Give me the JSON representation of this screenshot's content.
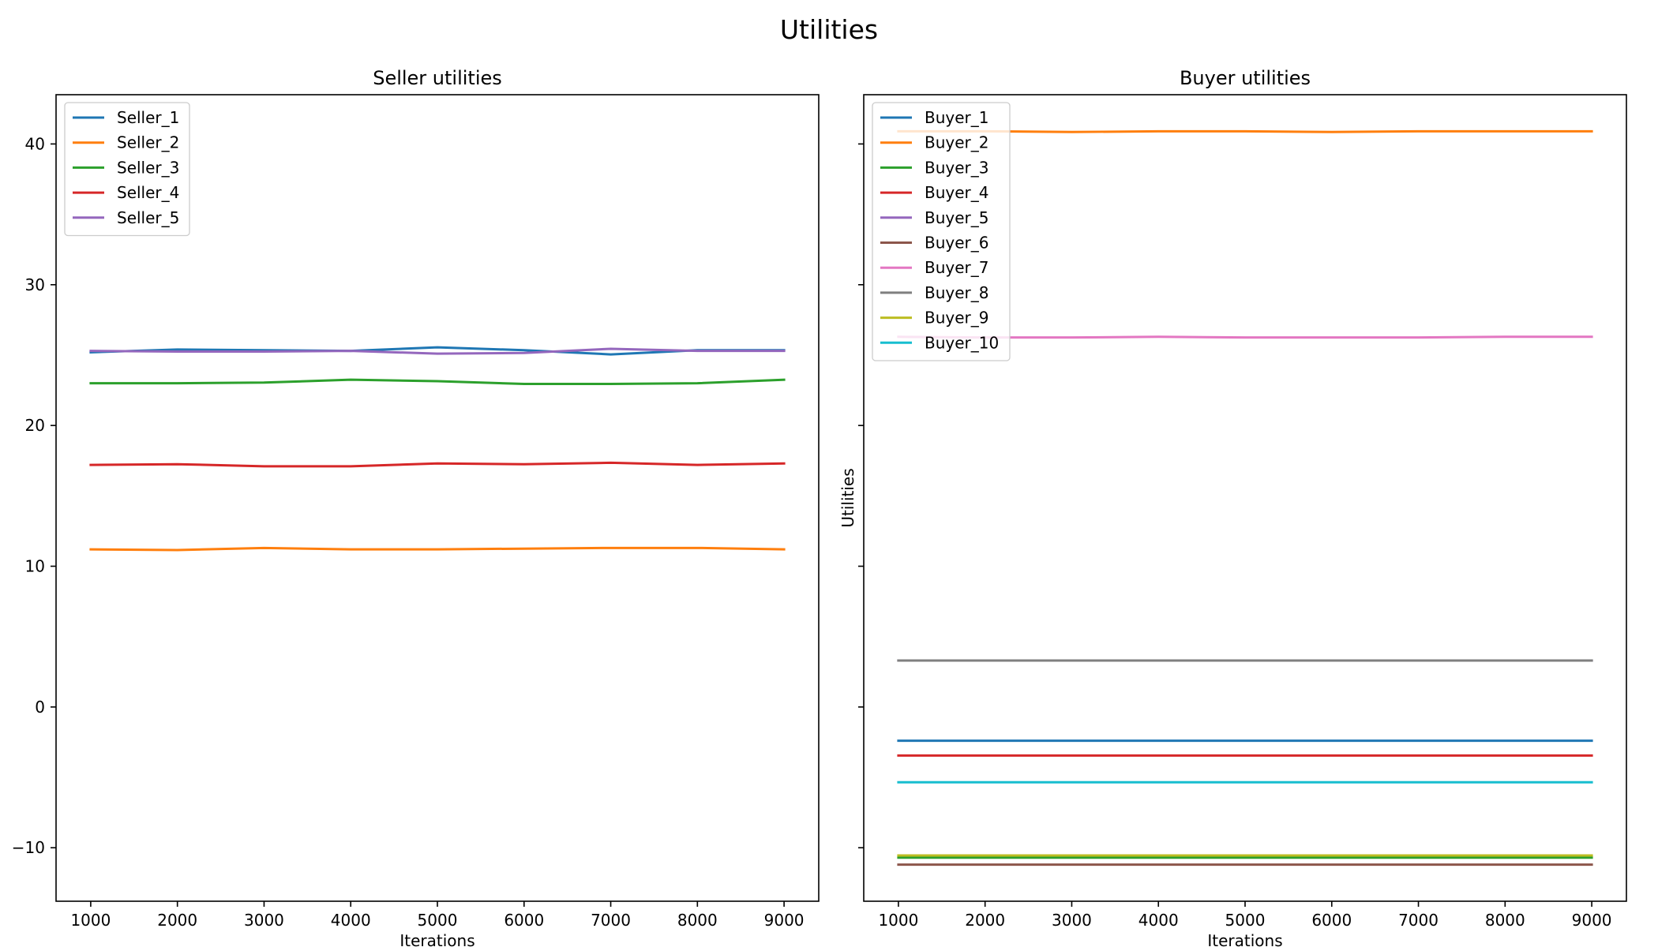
{
  "figure": {
    "title": "Utilities"
  },
  "colors": {
    "C0": "#1f77b4",
    "C1": "#ff7f0e",
    "C2": "#2ca02c",
    "C3": "#d62728",
    "C4": "#9467bd",
    "C5": "#8c564b",
    "C6": "#e377c2",
    "C7": "#7f7f7f",
    "C8": "#bcbd22",
    "C9": "#17becf"
  },
  "chart_data": [
    {
      "type": "line",
      "title": "Seller utilities",
      "xlabel": "Iterations",
      "ylabel": "",
      "x": [
        1000,
        2000,
        3000,
        4000,
        5000,
        6000,
        7000,
        8000,
        9000
      ],
      "xticks": [
        1000,
        2000,
        3000,
        4000,
        5000,
        6000,
        7000,
        8000,
        9000
      ],
      "xlim": [
        600,
        9400
      ],
      "yticks": [
        -10,
        0,
        10,
        20,
        30,
        40
      ],
      "ytick_labels": [
        "−10",
        "0",
        "10",
        "20",
        "30",
        "40"
      ],
      "ylim": [
        -13.8,
        43.5
      ],
      "show_yticklabels": true,
      "grid": false,
      "legend": "top-left",
      "series": [
        {
          "name": "Seller_1",
          "color": "#1f77b4",
          "values": [
            25.2,
            25.4,
            25.35,
            25.3,
            25.55,
            25.35,
            25.05,
            25.35,
            25.35
          ]
        },
        {
          "name": "Seller_2",
          "color": "#ff7f0e",
          "values": [
            11.2,
            11.15,
            11.3,
            11.2,
            11.2,
            11.25,
            11.3,
            11.3,
            11.2
          ]
        },
        {
          "name": "Seller_3",
          "color": "#2ca02c",
          "values": [
            23.0,
            23.0,
            23.05,
            23.25,
            23.15,
            22.95,
            22.95,
            23.0,
            23.25
          ]
        },
        {
          "name": "Seller_4",
          "color": "#d62728",
          "values": [
            17.2,
            17.25,
            17.1,
            17.1,
            17.3,
            17.25,
            17.35,
            17.2,
            17.3
          ]
        },
        {
          "name": "Seller_5",
          "color": "#9467bd",
          "values": [
            25.3,
            25.25,
            25.25,
            25.3,
            25.1,
            25.15,
            25.45,
            25.3,
            25.3
          ]
        }
      ]
    },
    {
      "type": "line",
      "title": "Buyer utilities",
      "xlabel": "Iterations",
      "ylabel": "Utilities",
      "x": [
        1000,
        2000,
        3000,
        4000,
        5000,
        6000,
        7000,
        8000,
        9000
      ],
      "xticks": [
        1000,
        2000,
        3000,
        4000,
        5000,
        6000,
        7000,
        8000,
        9000
      ],
      "xlim": [
        600,
        9400
      ],
      "yticks": [
        -10,
        0,
        10,
        20,
        30,
        40
      ],
      "ytick_labels": [
        "",
        "",
        "",
        "",
        "",
        ""
      ],
      "ylim": [
        -13.8,
        43.5
      ],
      "show_yticklabels": false,
      "grid": false,
      "legend": "top-left",
      "series": [
        {
          "name": "Buyer_1",
          "color": "#1f77b4",
          "values": [
            -2.4,
            -2.4,
            -2.4,
            -2.4,
            -2.4,
            -2.4,
            -2.4,
            -2.4,
            -2.4
          ]
        },
        {
          "name": "Buyer_2",
          "color": "#ff7f0e",
          "values": [
            40.9,
            40.9,
            40.85,
            40.9,
            40.9,
            40.85,
            40.9,
            40.9,
            40.9
          ]
        },
        {
          "name": "Buyer_3",
          "color": "#2ca02c",
          "values": [
            -10.7,
            -10.7,
            -10.7,
            -10.7,
            -10.7,
            -10.7,
            -10.7,
            -10.7,
            -10.7
          ]
        },
        {
          "name": "Buyer_4",
          "color": "#d62728",
          "values": [
            -3.45,
            -3.45,
            -3.45,
            -3.45,
            -3.45,
            -3.45,
            -3.45,
            -3.45,
            -3.45
          ]
        },
        {
          "name": "Buyer_5",
          "color": "#9467bd",
          "values": [
            3.3,
            3.3,
            3.3,
            3.3,
            3.3,
            3.3,
            3.3,
            3.3,
            3.3
          ]
        },
        {
          "name": "Buyer_6",
          "color": "#8c564b",
          "values": [
            -11.2,
            -11.2,
            -11.2,
            -11.2,
            -11.2,
            -11.2,
            -11.2,
            -11.2,
            -11.2
          ]
        },
        {
          "name": "Buyer_7",
          "color": "#e377c2",
          "values": [
            26.3,
            26.25,
            26.25,
            26.3,
            26.25,
            26.25,
            26.25,
            26.3,
            26.3
          ]
        },
        {
          "name": "Buyer_8",
          "color": "#7f7f7f",
          "values": [
            3.3,
            3.3,
            3.3,
            3.3,
            3.3,
            3.3,
            3.3,
            3.3,
            3.3
          ]
        },
        {
          "name": "Buyer_9",
          "color": "#bcbd22",
          "values": [
            -10.55,
            -10.55,
            -10.55,
            -10.55,
            -10.55,
            -10.55,
            -10.55,
            -10.55,
            -10.55
          ]
        },
        {
          "name": "Buyer_10",
          "color": "#17becf",
          "values": [
            -5.35,
            -5.35,
            -5.35,
            -5.35,
            -5.35,
            -5.35,
            -5.35,
            -5.35,
            -5.35
          ]
        }
      ]
    }
  ]
}
